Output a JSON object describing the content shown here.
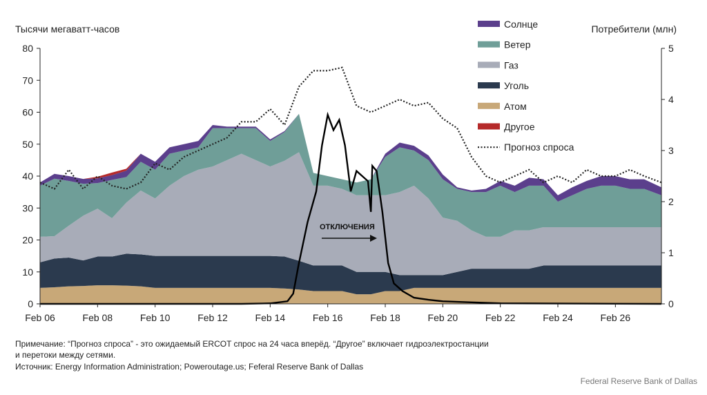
{
  "chart_data": {
    "type": "area",
    "ylabel_left": "Тысячи мегаватт-часов",
    "ylabel_right": "Потребители (млн)",
    "ylim_left": [
      0,
      80
    ],
    "ylim_right": [
      0,
      5
    ],
    "yticks_left": [
      0,
      10,
      20,
      30,
      40,
      50,
      60,
      70,
      80
    ],
    "yticks_right": [
      0,
      1,
      2,
      3,
      4,
      5
    ],
    "xlim_days": [
      6,
      27.6
    ],
    "x_tick_labels": [
      "Feb 06",
      "Feb 08",
      "Feb 10",
      "Feb 12",
      "Feb 14",
      "Feb 16",
      "Feb 18",
      "Feb 20",
      "Feb 22",
      "Feb 24",
      "Feb 26"
    ],
    "x_tick_days": [
      6,
      8,
      10,
      12,
      14,
      16,
      18,
      20,
      22,
      24,
      26
    ],
    "legend_position": "top-right",
    "x": [
      6,
      6.5,
      7,
      7.5,
      8,
      8.5,
      9,
      9.5,
      10,
      10.5,
      11,
      11.5,
      12,
      12.5,
      13,
      13.5,
      14,
      14.5,
      15,
      15.5,
      16,
      16.5,
      17,
      17.5,
      18,
      18.5,
      19,
      19.5,
      20,
      20.5,
      21,
      21.5,
      22,
      22.5,
      23,
      23.5,
      24,
      24.5,
      25,
      25.5,
      26,
      26.5,
      27,
      27.6
    ],
    "series": [
      {
        "name": "Атом",
        "color": "#c8a878",
        "values": [
          5,
          5.2,
          5.5,
          5.6,
          5.8,
          5.8,
          5.7,
          5.5,
          5,
          5,
          5,
          5,
          5,
          5,
          5,
          5,
          5,
          4.8,
          4.5,
          4,
          4,
          4,
          3,
          3,
          4,
          4,
          5,
          5,
          5,
          5,
          5,
          5,
          5,
          5,
          5,
          5,
          5,
          5,
          5,
          5,
          5,
          5,
          5,
          5
        ]
      },
      {
        "name": "Уголь",
        "color": "#2b3a4e",
        "values": [
          8,
          9,
          9,
          8,
          9,
          9,
          10,
          10,
          10,
          10,
          10,
          10,
          10,
          10,
          10,
          10,
          10,
          10,
          9,
          8,
          8,
          8,
          7,
          7,
          6,
          5,
          4,
          4,
          4,
          5,
          6,
          6,
          6,
          6,
          6,
          7,
          7,
          7,
          7,
          7,
          7,
          7,
          7,
          7
        ]
      },
      {
        "name": "Газ",
        "color": "#a8acb8",
        "values": [
          8,
          7,
          10,
          14,
          15,
          12,
          16,
          20,
          18,
          22,
          25,
          27,
          28,
          30,
          32,
          30,
          28,
          30,
          34,
          25,
          25,
          24,
          24,
          24,
          24,
          26,
          28,
          24,
          18,
          16,
          12,
          10,
          10,
          12,
          12,
          12,
          12,
          12,
          12,
          12,
          12,
          12,
          12,
          12
        ]
      },
      {
        "name": "Ветер",
        "color": "#6f9e98",
        "values": [
          16,
          18,
          14,
          10,
          8,
          12,
          8,
          9,
          9,
          10,
          8,
          7,
          12,
          10,
          8,
          10,
          8,
          9,
          12,
          4,
          3,
          3,
          4,
          5,
          12,
          14,
          11,
          12,
          12,
          10,
          12,
          14,
          16,
          12,
          14,
          13,
          8,
          10,
          12,
          13,
          13,
          12,
          12,
          10
        ]
      },
      {
        "name": "Солнце",
        "color": "#5b3f8c",
        "values": [
          1,
          1.5,
          1.5,
          1.5,
          1.5,
          1.5,
          2,
          2.5,
          2.5,
          2,
          2,
          2,
          1,
          0.5,
          0.5,
          0.5,
          0.5,
          0.3,
          0,
          0,
          0,
          0,
          0,
          0,
          1,
          1.5,
          1.5,
          1.5,
          1.5,
          0.5,
          0.5,
          1,
          1.5,
          2,
          2.5,
          2,
          2,
          2.5,
          2.5,
          3,
          3,
          3,
          3,
          2.5
        ]
      },
      {
        "name": "Другое",
        "color": "#b52a2a",
        "values": [
          0,
          0,
          0,
          0,
          0.5,
          0.8,
          0.6,
          0,
          0,
          0,
          0,
          0,
          0,
          0,
          0,
          0,
          0,
          0,
          0,
          0,
          0,
          0,
          0,
          0,
          0,
          0,
          0,
          0,
          0,
          0,
          0,
          0,
          0,
          0,
          0,
          0,
          0,
          0,
          0,
          0,
          0,
          0,
          0,
          0
        ]
      }
    ],
    "demand_forecast": {
      "name": "Прогноз спроса",
      "x": [
        6,
        6.5,
        7,
        7.5,
        8,
        8.5,
        9,
        9.5,
        10,
        10.5,
        11,
        11.5,
        12,
        12.5,
        13,
        13.5,
        14,
        14.5,
        15,
        15.5,
        16,
        16.5,
        17,
        17.5,
        18,
        18.5,
        19,
        19.5,
        20,
        20.5,
        21,
        21.5,
        22,
        22.5,
        23,
        23.5,
        24,
        24.5,
        25,
        25.5,
        26,
        26.5,
        27,
        27.6
      ],
      "values": [
        38,
        36,
        42,
        36,
        40,
        37,
        36,
        38,
        44,
        42,
        46,
        48,
        50,
        52,
        57,
        57,
        61,
        56,
        68,
        73,
        73,
        74,
        62,
        60,
        62,
        64,
        62,
        63,
        58,
        55,
        46,
        40,
        38,
        40,
        42,
        38,
        40,
        38,
        42,
        40,
        40,
        42,
        40,
        38
      ]
    },
    "outages": {
      "axis": "right",
      "x": [
        6,
        13,
        14,
        14.6,
        14.8,
        15,
        15.3,
        15.6,
        15.8,
        16,
        16.2,
        16.4,
        16.6,
        16.8,
        17,
        17.2,
        17.4,
        17.5,
        17.55,
        17.7,
        17.9,
        18.1,
        18.3,
        18.6,
        19,
        19.5,
        20,
        21,
        22,
        27.6
      ],
      "values": [
        0,
        0,
        0.01,
        0.05,
        0.2,
        0.8,
        1.6,
        2.2,
        3.1,
        3.7,
        3.4,
        3.6,
        3.1,
        2.2,
        2.6,
        2.5,
        2.4,
        1.8,
        2.7,
        2.6,
        1.8,
        0.8,
        0.4,
        0.25,
        0.12,
        0.08,
        0.05,
        0.03,
        0.01,
        0
      ]
    },
    "annotation": "ОТКЛЮЧЕНИЯ",
    "note_lines": [
      "Примечание: “Прогноз спроса” - это ожидаемый ERCOT спрос на 24 часа вперёд. “Другое” включает гидроэлектростанции",
      "и перетоки между сетями.",
      "Источник: Energy Information Administration; Poweroutage.us; Feferal Reserve Bank of Dallas"
    ],
    "credit": "Federal Reserve Bank of Dallas"
  }
}
